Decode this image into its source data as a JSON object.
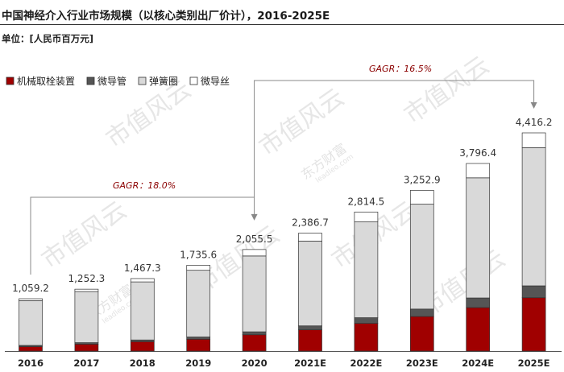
{
  "title": "中国神经介入行业市场规模（以核心类别出厂价计），2016-2025E",
  "unit_label": "单位：[人民币百万元]",
  "colors": {
    "机械取栓装置": "#a00000",
    "微导管": "#555555",
    "弹簧圈": "#d9d9d9",
    "微导丝": "#ffffff"
  },
  "annotations": {
    "cagr_1": "GAGR：18.0%",
    "cagr_2": "GAGR：16.5%"
  },
  "watermark": [
    "市值风云",
    "东方财富",
    "leadleo.com"
  ],
  "chart_data": {
    "type": "bar",
    "stacked": true,
    "categories": [
      "2016",
      "2017",
      "2018",
      "2019",
      "2020",
      "2021E",
      "2022E",
      "2023E",
      "2024E",
      "2025E"
    ],
    "totals": [
      "1,059.2",
      "1,252.3",
      "1,467.3",
      "1,735.6",
      "2,055.5",
      "2,386.7",
      "2,814.5",
      "3,252.9",
      "3,796.4",
      "4,416.2"
    ],
    "total_values": [
      1059.2,
      1252.3,
      1467.3,
      1735.6,
      2055.5,
      2386.7,
      2814.5,
      3252.9,
      3796.4,
      4416.2
    ],
    "series": [
      {
        "name": "机械取栓装置",
        "values": [
          90,
          140,
          190,
          240,
          330,
          430,
          560,
          700,
          880,
          1080
        ]
      },
      {
        "name": "微导管",
        "values": [
          25,
          30,
          35,
          45,
          60,
          80,
          115,
          150,
          195,
          240
        ]
      },
      {
        "name": "弹簧圈",
        "values": [
          905,
          1035,
          1175,
          1350,
          1535,
          1716,
          1939.5,
          2122.9,
          2431.4,
          2796.2
        ]
      },
      {
        "name": "微导丝",
        "values": [
          39.2,
          47.3,
          67.3,
          100.6,
          130.5,
          160.7,
          200,
          280,
          290,
          300
        ]
      }
    ],
    "legend_position": "top-left",
    "grid": false
  }
}
